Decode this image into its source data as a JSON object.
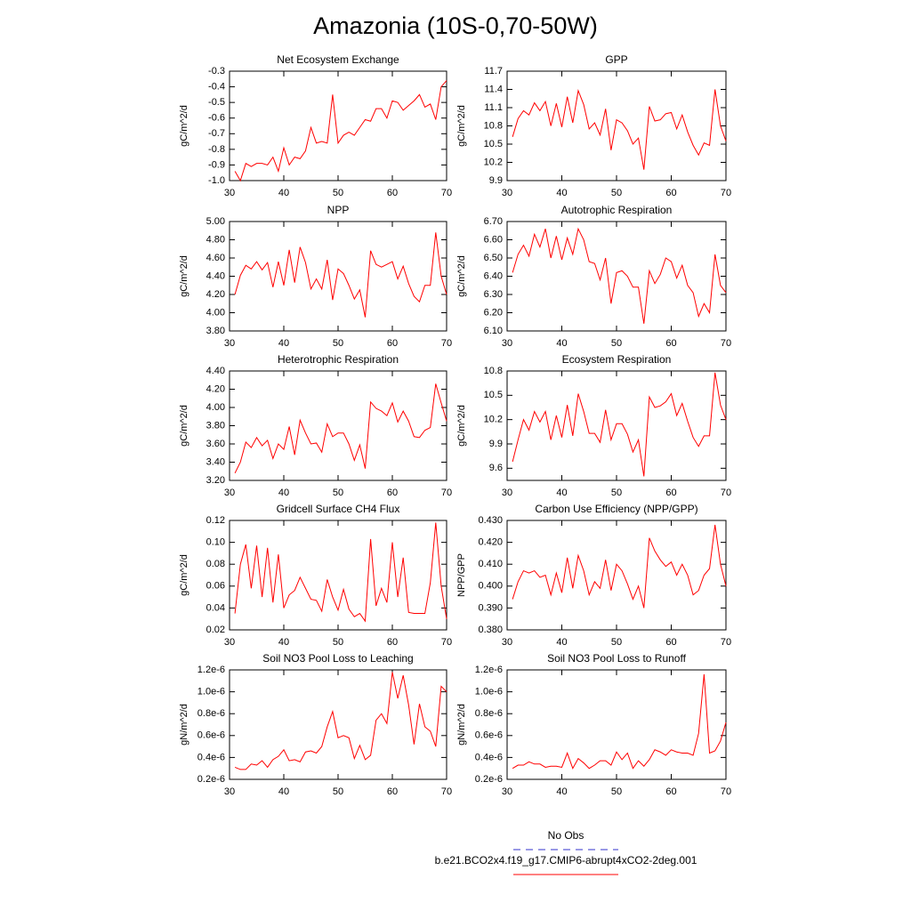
{
  "title": "Amazonia (10S-0,70-50W)",
  "legend": [
    {
      "name": "No Obs",
      "color": "#3333cc",
      "dash": true
    },
    {
      "name": "b.e21.BCO2x4.f19_g17.CMIP6-abrupt4xCO2-2deg.001",
      "color": "#ff0000",
      "dash": false
    }
  ],
  "chart_data": [
    {
      "type": "line",
      "title": "Net Ecosystem Exchange",
      "y_label": "gC/m^2/d",
      "color": "#ff0000",
      "x": [
        31,
        32,
        33,
        34,
        35,
        36,
        37,
        38,
        39,
        40,
        41,
        42,
        43,
        44,
        45,
        46,
        47,
        48,
        49,
        50,
        51,
        52,
        53,
        54,
        55,
        56,
        57,
        58,
        59,
        60,
        61,
        62,
        63,
        64,
        65,
        66,
        67,
        68,
        69,
        70
      ],
      "values": [
        -0.94,
        -1.0,
        -0.89,
        -0.91,
        -0.89,
        -0.89,
        -0.9,
        -0.85,
        -0.94,
        -0.79,
        -0.9,
        -0.85,
        -0.86,
        -0.81,
        -0.66,
        -0.76,
        -0.75,
        -0.76,
        -0.45,
        -0.76,
        -0.71,
        -0.69,
        -0.71,
        -0.66,
        -0.61,
        -0.62,
        -0.54,
        -0.54,
        -0.6,
        -0.49,
        -0.5,
        -0.55,
        -0.52,
        -0.49,
        -0.45,
        -0.53,
        -0.51,
        -0.61,
        -0.4,
        -0.36
      ],
      "xlim": [
        30,
        70
      ],
      "xticks": [
        30,
        40,
        50,
        60,
        70
      ],
      "ylim": [
        -1.0,
        -0.3
      ],
      "yticks": [
        {
          "value": -1,
          "label": "-1.0"
        },
        -0.9,
        -0.8,
        -0.7,
        -0.6,
        -0.5,
        -0.4,
        -0.3
      ]
    },
    {
      "type": "line",
      "title": "GPP",
      "y_label": "gC/m^2/d",
      "color": "#ff0000",
      "x": [
        31,
        32,
        33,
        34,
        35,
        36,
        37,
        38,
        39,
        40,
        41,
        42,
        43,
        44,
        45,
        46,
        47,
        48,
        49,
        50,
        51,
        52,
        53,
        54,
        55,
        56,
        57,
        58,
        59,
        60,
        61,
        62,
        63,
        64,
        65,
        66,
        67,
        68,
        69,
        70
      ],
      "values": [
        10.62,
        10.92,
        11.05,
        10.98,
        11.18,
        11.05,
        11.2,
        10.8,
        11.17,
        10.78,
        11.28,
        10.85,
        11.38,
        11.15,
        10.75,
        10.85,
        10.65,
        11.08,
        10.4,
        10.9,
        10.85,
        10.72,
        10.5,
        10.6,
        10.08,
        11.12,
        10.88,
        10.9,
        11.0,
        11.02,
        10.75,
        10.98,
        10.7,
        10.48,
        10.32,
        10.52,
        10.48,
        11.4,
        10.8,
        10.55
      ],
      "xlim": [
        30,
        70
      ],
      "xticks": [
        30,
        40,
        50,
        60,
        70
      ],
      "ylim": [
        9.9,
        11.7
      ],
      "yticks": [
        9.9,
        10.2,
        10.5,
        10.8,
        11.1,
        11.4,
        11.7
      ]
    },
    {
      "type": "line",
      "title": "NPP",
      "y_label": "gC/m^2/d",
      "color": "#ff0000",
      "x": [
        31,
        32,
        33,
        34,
        35,
        36,
        37,
        38,
        39,
        40,
        41,
        42,
        43,
        44,
        45,
        46,
        47,
        48,
        49,
        50,
        51,
        52,
        53,
        54,
        55,
        56,
        57,
        58,
        59,
        60,
        61,
        62,
        63,
        64,
        65,
        66,
        67,
        68,
        69,
        70
      ],
      "values": [
        4.2,
        4.41,
        4.52,
        4.48,
        4.56,
        4.47,
        4.55,
        4.28,
        4.56,
        4.3,
        4.69,
        4.33,
        4.72,
        4.55,
        4.26,
        4.37,
        4.26,
        4.58,
        4.14,
        4.48,
        4.43,
        4.3,
        4.15,
        4.25,
        3.95,
        4.68,
        4.53,
        4.5,
        4.53,
        4.56,
        4.37,
        4.51,
        4.32,
        4.18,
        4.12,
        4.3,
        4.3,
        4.88,
        4.4,
        4.2
      ],
      "xlim": [
        30,
        70
      ],
      "xticks": [
        30,
        40,
        50,
        60,
        70
      ],
      "ylim": [
        3.8,
        5.0
      ],
      "yticks": [
        {
          "value": 3.8,
          "label": "3.80"
        },
        {
          "value": 4.0,
          "label": "4.00"
        },
        {
          "value": 4.2,
          "label": "4.20"
        },
        {
          "value": 4.4,
          "label": "4.40"
        },
        {
          "value": 4.6,
          "label": "4.60"
        },
        {
          "value": 4.8,
          "label": "4.80"
        },
        {
          "value": 5.0,
          "label": "5.00"
        }
      ]
    },
    {
      "type": "line",
      "title": "Autotrophic Respiration",
      "y_label": "gC/m^2/d",
      "color": "#ff0000",
      "x": [
        31,
        32,
        33,
        34,
        35,
        36,
        37,
        38,
        39,
        40,
        41,
        42,
        43,
        44,
        45,
        46,
        47,
        48,
        49,
        50,
        51,
        52,
        53,
        54,
        55,
        56,
        57,
        58,
        59,
        60,
        61,
        62,
        63,
        64,
        65,
        66,
        67,
        68,
        69,
        70
      ],
      "values": [
        6.42,
        6.52,
        6.57,
        6.51,
        6.63,
        6.56,
        6.66,
        6.5,
        6.62,
        6.49,
        6.61,
        6.52,
        6.66,
        6.6,
        6.48,
        6.47,
        6.38,
        6.5,
        6.25,
        6.42,
        6.43,
        6.4,
        6.34,
        6.34,
        6.14,
        6.43,
        6.36,
        6.41,
        6.5,
        6.48,
        6.39,
        6.46,
        6.35,
        6.31,
        6.18,
        6.25,
        6.2,
        6.52,
        6.35,
        6.31
      ],
      "xlim": [
        30,
        70
      ],
      "xticks": [
        30,
        40,
        50,
        60,
        70
      ],
      "ylim": [
        6.1,
        6.7
      ],
      "yticks": [
        {
          "value": 6.1,
          "label": "6.10"
        },
        {
          "value": 6.2,
          "label": "6.20"
        },
        {
          "value": 6.3,
          "label": "6.30"
        },
        {
          "value": 6.4,
          "label": "6.40"
        },
        {
          "value": 6.5,
          "label": "6.50"
        },
        {
          "value": 6.6,
          "label": "6.60"
        },
        {
          "value": 6.7,
          "label": "6.70"
        }
      ]
    },
    {
      "type": "line",
      "title": "Heterotrophic Respiration",
      "y_label": "gC/m^2/d",
      "color": "#ff0000",
      "x": [
        31,
        32,
        33,
        34,
        35,
        36,
        37,
        38,
        39,
        40,
        41,
        42,
        43,
        44,
        45,
        46,
        47,
        48,
        49,
        50,
        51,
        52,
        53,
        54,
        55,
        56,
        57,
        58,
        59,
        60,
        61,
        62,
        63,
        64,
        65,
        66,
        67,
        68,
        69,
        70
      ],
      "values": [
        3.28,
        3.4,
        3.62,
        3.56,
        3.67,
        3.58,
        3.64,
        3.44,
        3.6,
        3.54,
        3.79,
        3.48,
        3.86,
        3.72,
        3.6,
        3.61,
        3.51,
        3.82,
        3.68,
        3.72,
        3.72,
        3.6,
        3.42,
        3.59,
        3.33,
        4.06,
        3.99,
        3.96,
        3.91,
        4.05,
        3.84,
        3.96,
        3.85,
        3.68,
        3.67,
        3.75,
        3.78,
        4.26,
        4.05,
        3.85
      ],
      "xlim": [
        30,
        70
      ],
      "xticks": [
        30,
        40,
        50,
        60,
        70
      ],
      "ylim": [
        3.2,
        4.4
      ],
      "yticks": [
        {
          "value": 3.2,
          "label": "3.20"
        },
        {
          "value": 3.4,
          "label": "3.40"
        },
        {
          "value": 3.6,
          "label": "3.60"
        },
        {
          "value": 3.8,
          "label": "3.80"
        },
        {
          "value": 4.0,
          "label": "4.00"
        },
        {
          "value": 4.2,
          "label": "4.20"
        },
        {
          "value": 4.4,
          "label": "4.40"
        }
      ]
    },
    {
      "type": "line",
      "title": "Ecosystem Respiration",
      "y_label": "gC/m^2/d",
      "color": "#ff0000",
      "x": [
        31,
        32,
        33,
        34,
        35,
        36,
        37,
        38,
        39,
        40,
        41,
        42,
        43,
        44,
        45,
        46,
        47,
        48,
        49,
        50,
        51,
        52,
        53,
        54,
        55,
        56,
        57,
        58,
        59,
        60,
        61,
        62,
        63,
        64,
        65,
        66,
        67,
        68,
        69,
        70
      ],
      "values": [
        9.68,
        9.95,
        10.2,
        10.07,
        10.3,
        10.17,
        10.3,
        9.95,
        10.25,
        9.98,
        10.38,
        10.0,
        10.52,
        10.3,
        10.03,
        10.03,
        9.92,
        10.32,
        9.95,
        10.15,
        10.15,
        10.02,
        9.8,
        9.95,
        9.5,
        10.48,
        10.35,
        10.37,
        10.42,
        10.52,
        10.25,
        10.4,
        10.18,
        9.98,
        9.87,
        10.0,
        10.0,
        10.78,
        10.38,
        10.2
      ],
      "xlim": [
        30,
        70
      ],
      "xticks": [
        30,
        40,
        50,
        60,
        70
      ],
      "ylim": [
        9.45,
        10.8
      ],
      "yticks": [
        9.6,
        9.9,
        10.2,
        10.5,
        10.8
      ]
    },
    {
      "type": "line",
      "title": "Gridcell Surface CH4 Flux",
      "y_label": "gC/m^2/d",
      "color": "#ff0000",
      "x": [
        31,
        32,
        33,
        34,
        35,
        36,
        37,
        38,
        39,
        40,
        41,
        42,
        43,
        44,
        45,
        46,
        47,
        48,
        49,
        50,
        51,
        52,
        53,
        54,
        55,
        56,
        57,
        58,
        59,
        60,
        61,
        62,
        63,
        64,
        65,
        66,
        67,
        68,
        69,
        70
      ],
      "values": [
        0.035,
        0.08,
        0.098,
        0.058,
        0.097,
        0.05,
        0.095,
        0.045,
        0.089,
        0.04,
        0.052,
        0.056,
        0.068,
        0.058,
        0.048,
        0.047,
        0.037,
        0.066,
        0.05,
        0.038,
        0.057,
        0.039,
        0.032,
        0.035,
        0.028,
        0.103,
        0.042,
        0.058,
        0.045,
        0.1,
        0.05,
        0.086,
        0.036,
        0.035,
        0.035,
        0.035,
        0.063,
        0.118,
        0.06,
        0.03
      ],
      "xlim": [
        30,
        70
      ],
      "xticks": [
        30,
        40,
        50,
        60,
        70
      ],
      "ylim": [
        0.02,
        0.12
      ],
      "yticks": [
        0.02,
        0.04,
        0.06,
        0.08,
        {
          "value": 0.1,
          "label": "0.10"
        },
        0.12
      ]
    },
    {
      "type": "line",
      "title": "Carbon Use Efficiency (NPP/GPP)",
      "y_label": "NPP/GPP",
      "color": "#ff0000",
      "x": [
        31,
        32,
        33,
        34,
        35,
        36,
        37,
        38,
        39,
        40,
        41,
        42,
        43,
        44,
        45,
        46,
        47,
        48,
        49,
        50,
        51,
        52,
        53,
        54,
        55,
        56,
        57,
        58,
        59,
        60,
        61,
        62,
        63,
        64,
        65,
        66,
        67,
        68,
        69,
        70
      ],
      "values": [
        0.394,
        0.402,
        0.407,
        0.406,
        0.407,
        0.404,
        0.405,
        0.396,
        0.406,
        0.397,
        0.413,
        0.399,
        0.414,
        0.407,
        0.396,
        0.402,
        0.399,
        0.412,
        0.398,
        0.41,
        0.407,
        0.401,
        0.394,
        0.4,
        0.39,
        0.422,
        0.416,
        0.412,
        0.409,
        0.411,
        0.405,
        0.41,
        0.405,
        0.396,
        0.398,
        0.405,
        0.408,
        0.428,
        0.41,
        0.4
      ],
      "xlim": [
        30,
        70
      ],
      "xticks": [
        30,
        40,
        50,
        60,
        70
      ],
      "ylim": [
        0.38,
        0.43
      ],
      "yticks": [
        {
          "value": 0.38,
          "label": "0.380"
        },
        {
          "value": 0.39,
          "label": "0.390"
        },
        {
          "value": 0.4,
          "label": "0.400"
        },
        {
          "value": 0.41,
          "label": "0.410"
        },
        {
          "value": 0.42,
          "label": "0.420"
        },
        {
          "value": 0.43,
          "label": "0.430"
        }
      ]
    },
    {
      "type": "line",
      "title": "Soil NO3 Pool Loss to Leaching",
      "y_label": "gN/m^2/d",
      "color": "#ff0000",
      "x": [
        31,
        32,
        33,
        34,
        35,
        36,
        37,
        38,
        39,
        40,
        41,
        42,
        43,
        44,
        45,
        46,
        47,
        48,
        49,
        50,
        51,
        52,
        53,
        54,
        55,
        56,
        57,
        58,
        59,
        60,
        61,
        62,
        63,
        64,
        65,
        66,
        67,
        68,
        69,
        70
      ],
      "values": [
        3.1e-07,
        2.9e-07,
        2.9e-07,
        3.4e-07,
        3.3e-07,
        3.7e-07,
        3.1e-07,
        3.8e-07,
        4.1e-07,
        4.7e-07,
        3.7e-07,
        3.8e-07,
        3.6e-07,
        4.5e-07,
        4.6e-07,
        4.4e-07,
        5e-07,
        6.8e-07,
        8.2e-07,
        5.8e-07,
        6e-07,
        5.8e-07,
        3.9e-07,
        5.1e-07,
        3.8e-07,
        4.2e-07,
        7.4e-07,
        8e-07,
        7.1e-07,
        1.18e-06,
        9.4e-07,
        1.15e-06,
        8.8e-07,
        5.2e-07,
        8.9e-07,
        6.8e-07,
        6.4e-07,
        5e-07,
        1.05e-06,
        1e-06
      ],
      "xlim": [
        30,
        70
      ],
      "xticks": [
        30,
        40,
        50,
        60,
        70
      ],
      "ylim": [
        2e-07,
        1.2e-06
      ],
      "yticks": [
        {
          "value": 2e-07,
          "label": "0.2e-6"
        },
        {
          "value": 4e-07,
          "label": "0.4e-6"
        },
        {
          "value": 6e-07,
          "label": "0.6e-6"
        },
        {
          "value": 8e-07,
          "label": "0.8e-6"
        },
        {
          "value": 1e-06,
          "label": "1.0e-6"
        },
        {
          "value": 1.2e-06,
          "label": "1.2e-6"
        }
      ]
    },
    {
      "type": "line",
      "title": "Soil NO3 Pool Loss to Runoff",
      "y_label": "gN/m^2/d",
      "color": "#ff0000",
      "x": [
        31,
        32,
        33,
        34,
        35,
        36,
        37,
        38,
        39,
        40,
        41,
        42,
        43,
        44,
        45,
        46,
        47,
        48,
        49,
        50,
        51,
        52,
        53,
        54,
        55,
        56,
        57,
        58,
        59,
        60,
        61,
        62,
        63,
        64,
        65,
        66,
        67,
        68,
        69,
        70
      ],
      "values": [
        3e-07,
        3.3e-07,
        3.3e-07,
        3.6e-07,
        3.4e-07,
        3.4e-07,
        3.1e-07,
        3.2e-07,
        3.2e-07,
        3.1e-07,
        4.4e-07,
        3e-07,
        3.9e-07,
        3.5e-07,
        3e-07,
        3.3e-07,
        3.7e-07,
        3.7e-07,
        3.3e-07,
        4.5e-07,
        3.8e-07,
        4.4e-07,
        3e-07,
        3.7e-07,
        3.2e-07,
        3.8e-07,
        4.7e-07,
        4.5e-07,
        4.2e-07,
        4.7e-07,
        4.5e-07,
        4.4e-07,
        4.4e-07,
        4.2e-07,
        6.2e-07,
        1.16e-06,
        4.4e-07,
        4.6e-07,
        5.5e-07,
        7.2e-07
      ],
      "xlim": [
        30,
        70
      ],
      "xticks": [
        30,
        40,
        50,
        60,
        70
      ],
      "ylim": [
        2e-07,
        1.2e-06
      ],
      "yticks": [
        {
          "value": 2e-07,
          "label": "0.2e-6"
        },
        {
          "value": 4e-07,
          "label": "0.4e-6"
        },
        {
          "value": 6e-07,
          "label": "0.6e-6"
        },
        {
          "value": 8e-07,
          "label": "0.8e-6"
        },
        {
          "value": 1e-06,
          "label": "1.0e-6"
        },
        {
          "value": 1.2e-06,
          "label": "1.2e-6"
        }
      ]
    }
  ]
}
